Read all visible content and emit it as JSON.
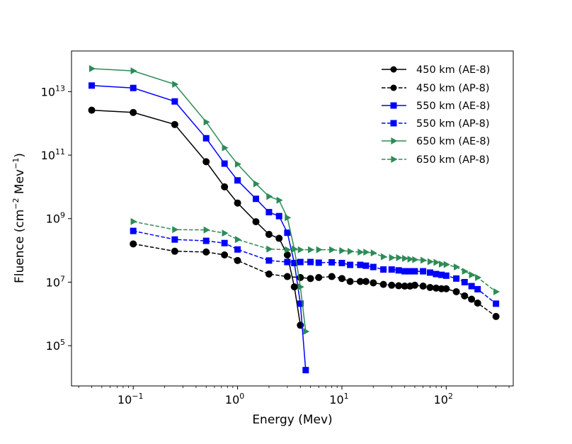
{
  "chart_data": {
    "type": "line",
    "title": "",
    "xlabel": "Energy (Mev)",
    "ylabel": {
      "prefix": "Fluence (cm",
      "exp1": "−2",
      "mid": " Mev",
      "exp2": "−1",
      "suffix": ")"
    },
    "xscale": "log",
    "yscale": "log",
    "xlim": [
      0.0256,
      439
    ],
    "ylim": [
      5400,
      190000000000000.0
    ],
    "grid": false,
    "legend_position": "top-right",
    "xticks": [
      {
        "value": 0.1,
        "base": "10",
        "exp": "−1"
      },
      {
        "value": 1,
        "base": "10",
        "exp": "0"
      },
      {
        "value": 10,
        "base": "10",
        "exp": "1"
      },
      {
        "value": 100,
        "base": "10",
        "exp": "2"
      }
    ],
    "yticks": [
      {
        "value": 100000.0,
        "base": "10",
        "exp": "5"
      },
      {
        "value": 10000000.0,
        "base": "10",
        "exp": "7"
      },
      {
        "value": 1000000000.0,
        "base": "10",
        "exp": "9"
      },
      {
        "value": 100000000000.0,
        "base": "10",
        "exp": "11"
      },
      {
        "value": 10000000000000.0,
        "base": "10",
        "exp": "13"
      }
    ],
    "series": [
      {
        "name": "450 km (AE-8)",
        "color": "#000000",
        "marker": "circle",
        "dashed": false,
        "x": [
          0.04,
          0.1,
          0.25,
          0.5,
          0.75,
          1,
          1.5,
          2,
          2.5,
          3,
          3.5,
          4
        ],
        "y": [
          2600000000000.0,
          2200000000000.0,
          920000000000.0,
          62000000000.0,
          10000000000.0,
          3100000000.0,
          800000000.0,
          320000000.0,
          240000000.0,
          72000000.0,
          7100000.0,
          440000.0
        ]
      },
      {
        "name": "450 km (AP-8)",
        "color": "#000000",
        "marker": "circle",
        "dashed": true,
        "x": [
          0.1,
          0.25,
          0.5,
          0.75,
          1,
          2,
          3,
          4,
          5,
          6,
          8,
          10,
          12,
          15,
          17,
          20,
          25,
          30,
          35,
          40,
          45,
          50,
          60,
          70,
          80,
          90,
          100,
          125,
          150,
          175,
          200,
          300
        ],
        "y": [
          160000000.0,
          94000000.0,
          89000000.0,
          72000000.0,
          48000000.0,
          18000000.0,
          15000000.0,
          14000000.0,
          13000000.0,
          14000000.0,
          15000000.0,
          13000000.0,
          10500000.0,
          10500000.0,
          10500000.0,
          9500000.0,
          8500000.0,
          8000000.0,
          7700000.0,
          7500000.0,
          7500000.0,
          8000000.0,
          7500000.0,
          6800000.0,
          6500000.0,
          6200000.0,
          6200000.0,
          5000000.0,
          3700000.0,
          2900000.0,
          2200000.0,
          830000.0
        ]
      },
      {
        "name": "550 km (AE-8)",
        "color": "#0000ff",
        "marker": "square",
        "dashed": false,
        "x": [
          0.04,
          0.1,
          0.25,
          0.5,
          0.75,
          1,
          1.5,
          2,
          2.5,
          3,
          3.5,
          4,
          4.5
        ],
        "y": [
          15500000000000.0,
          13000000000000.0,
          4900000000000.0,
          340000000000.0,
          54000000000.0,
          16000000000.0,
          4200000000.0,
          1600000000.0,
          1200000000.0,
          360000000.0,
          40000000.0,
          2100000.0,
          17000.0
        ]
      },
      {
        "name": "550 km (AP-8)",
        "color": "#0000ff",
        "marker": "square",
        "dashed": true,
        "x": [
          0.1,
          0.25,
          0.5,
          0.75,
          1,
          2,
          3,
          4,
          5,
          6,
          8,
          10,
          12,
          15,
          17,
          20,
          25,
          30,
          35,
          40,
          45,
          50,
          60,
          70,
          80,
          90,
          100,
          125,
          150,
          175,
          200,
          300
        ],
        "y": [
          410000000.0,
          220000000.0,
          200000000.0,
          170000000.0,
          107000000.0,
          48000000.0,
          43000000.0,
          43000000.0,
          43000000.0,
          41000000.0,
          42000000.0,
          40000000.0,
          35000000.0,
          35000000.0,
          33000000.0,
          30000000.0,
          25000000.0,
          25000000.0,
          23500000.0,
          22000000.0,
          22000000.0,
          22000000.0,
          22000000.0,
          20000000.0,
          18000000.0,
          17000000.0,
          16000000.0,
          13000000.0,
          10000000.0,
          7500000.0,
          6000000.0,
          2100000.0
        ]
      },
      {
        "name": "650 km (AE-8)",
        "color": "#2e8b57",
        "marker": "triangle-right",
        "dashed": false,
        "x": [
          0.04,
          0.1,
          0.25,
          0.5,
          0.75,
          1,
          1.5,
          2,
          2.5,
          3,
          3.5,
          4,
          4.5
        ],
        "y": [
          53000000000000.0,
          45000000000000.0,
          17000000000000.0,
          1100000000000.0,
          170000000000.0,
          52000000000.0,
          12500000000.0,
          5000000000.0,
          3800000000.0,
          1070000000.0,
          110000000.0,
          7100000.0,
          280000.0
        ]
      },
      {
        "name": "650 km (AP-8)",
        "color": "#2e8b57",
        "marker": "triangle-right",
        "dashed": true,
        "x": [
          0.1,
          0.25,
          0.5,
          0.75,
          1,
          2,
          3,
          4,
          5,
          6,
          8,
          10,
          12,
          15,
          17,
          20,
          25,
          30,
          35,
          40,
          45,
          50,
          60,
          70,
          80,
          90,
          100,
          125,
          150,
          175,
          200,
          300
        ],
        "y": [
          810000000.0,
          450000000.0,
          440000000.0,
          350000000.0,
          220000000.0,
          110000000.0,
          105000000.0,
          105000000.0,
          105000000.0,
          105000000.0,
          105000000.0,
          98000000.0,
          93000000.0,
          88000000.0,
          88000000.0,
          83000000.0,
          63000000.0,
          59000000.0,
          59000000.0,
          56000000.0,
          53000000.0,
          51000000.0,
          49000000.0,
          44000000.0,
          42000000.0,
          37000000.0,
          36000000.0,
          30000000.0,
          22000000.0,
          17000000.0,
          14000000.0,
          5000000.0
        ]
      }
    ]
  }
}
